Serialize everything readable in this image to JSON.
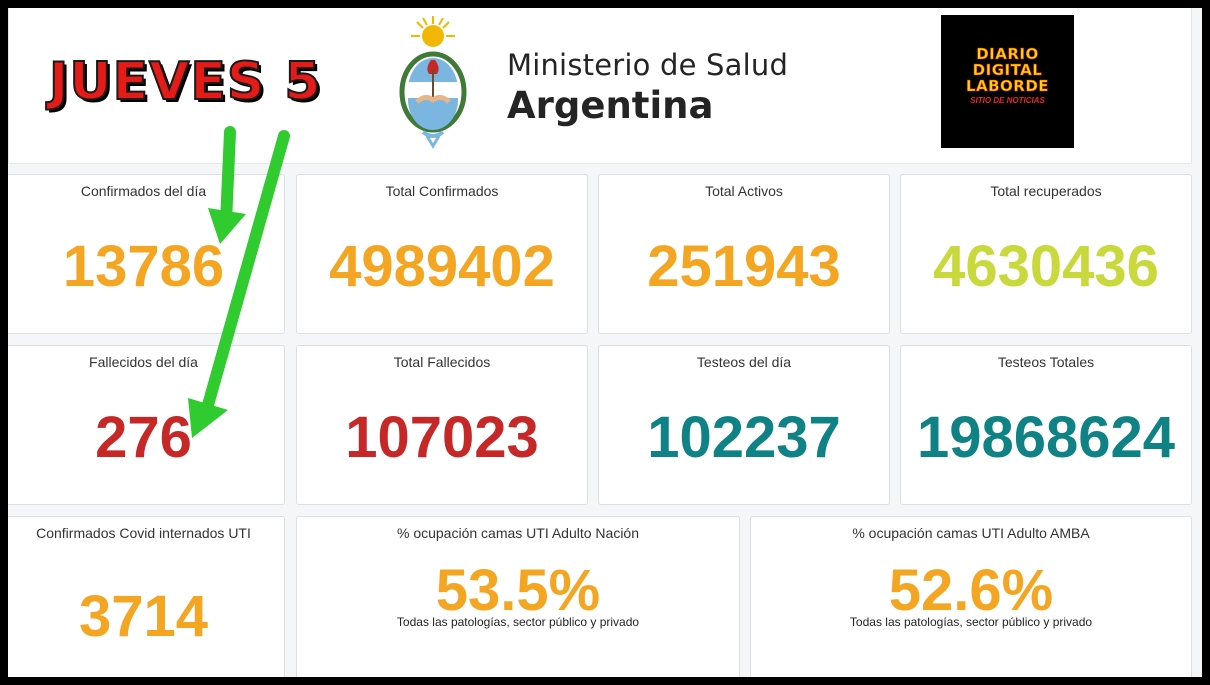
{
  "banner": {
    "text": "JUEVES 5"
  },
  "ministry": {
    "line1": "Ministerio de Salud",
    "line2": "Argentina"
  },
  "diario": {
    "line1": "DIARIO",
    "line2": "DIGITAL",
    "line3": "LABORDE",
    "tagline": "SITIO DE NOTICIAS"
  },
  "stats": {
    "confirmados_dia": {
      "label": "Confirmados del día",
      "value": "13786"
    },
    "total_confirmados": {
      "label": "Total Confirmados",
      "value": "4989402"
    },
    "total_activos": {
      "label": "Total Activos",
      "value": "251943"
    },
    "total_recuperados": {
      "label": "Total recuperados",
      "value": "4630436"
    },
    "fallecidos_dia": {
      "label": "Fallecidos del día",
      "value": "276"
    },
    "total_fallecidos": {
      "label": "Total Fallecidos",
      "value": "107023"
    },
    "testeos_dia": {
      "label": "Testeos del día",
      "value": "102237"
    },
    "testeos_totales": {
      "label": "Testeos Totales",
      "value": "19868624"
    },
    "internados_uti": {
      "label": "Confirmados Covid internados UTI",
      "value": "3714"
    },
    "ocupacion_nacion": {
      "label": "% ocupación camas UTI Adulto Nación",
      "value": "53.5%",
      "note": "Todas las patologías, sector público y privado"
    },
    "ocupacion_amba": {
      "label": "% ocupación camas UTI Adulto AMBA",
      "value": "52.6%",
      "note": "Todas las patologías, sector público y privado"
    }
  },
  "colors": {
    "orange": "#f4a623",
    "lime": "#c9d83a",
    "red": "#c62828",
    "teal": "#0f8285",
    "arrow": "#2fcb2f"
  }
}
